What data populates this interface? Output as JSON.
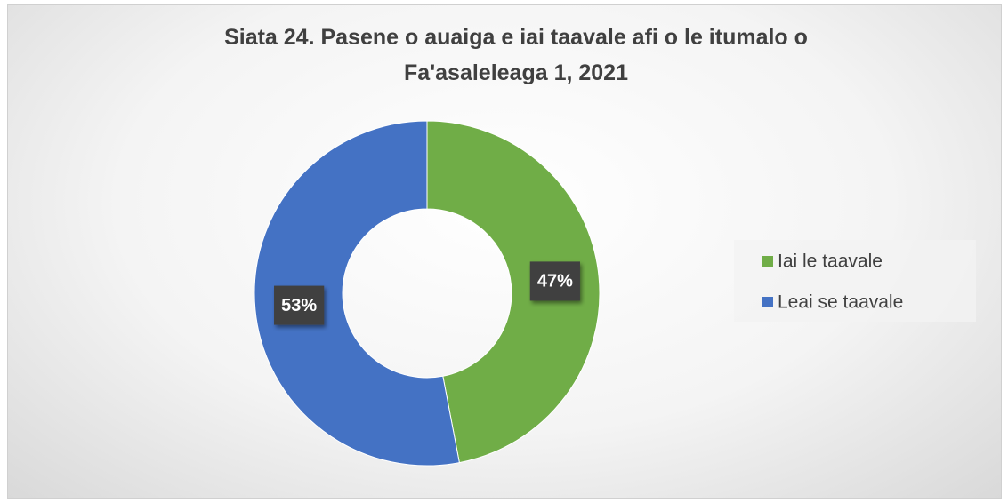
{
  "chart_data": {
    "type": "donut",
    "title": "Siata 24. Pasene o auaiga e iai taavale afi o le itumalo o Fa'asaleleaga 1, 2021",
    "categories": [
      "Iai le taavale",
      "Leai se taavale"
    ],
    "values": [
      47,
      53
    ],
    "value_labels": [
      "47%",
      "53%"
    ],
    "colors": [
      "#70ad47",
      "#4472c4"
    ],
    "legend": "right"
  }
}
